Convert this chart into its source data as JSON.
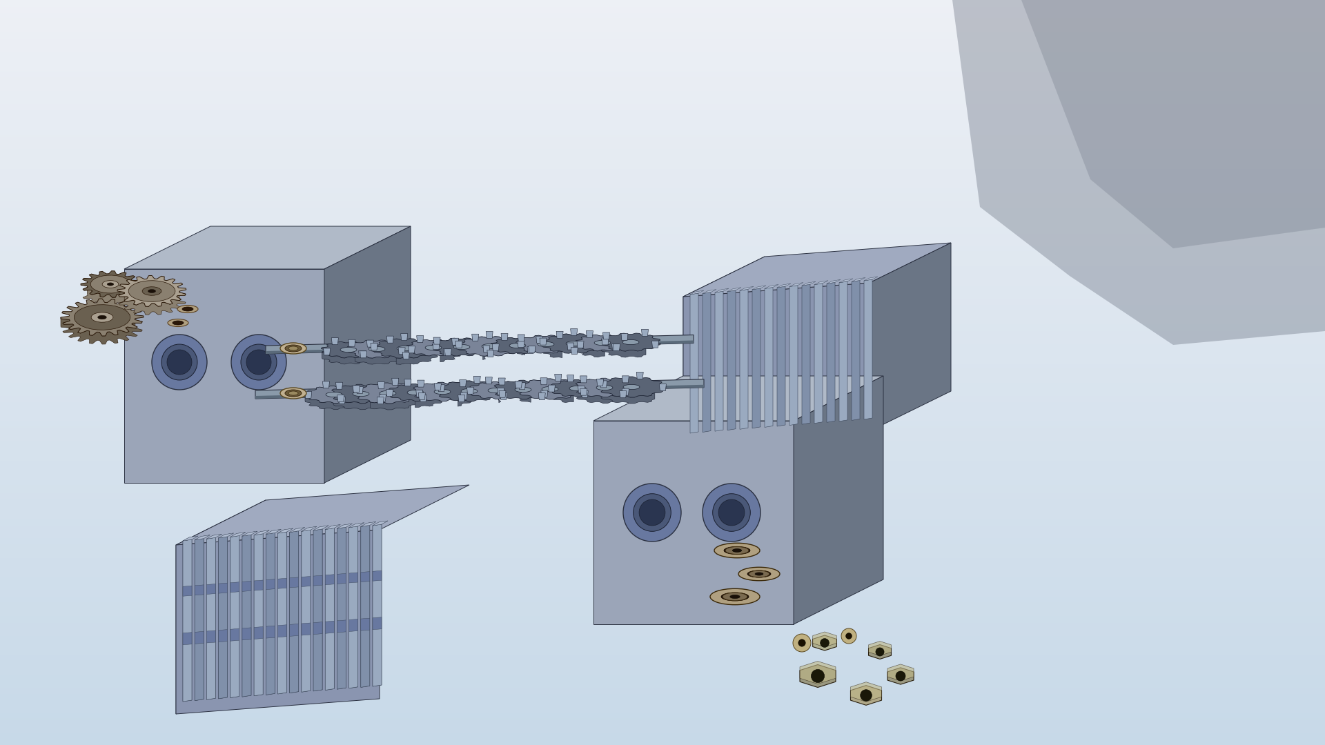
{
  "bg_color_top": "#c8d8e8",
  "bg_color_bottom": "#e8eef4",
  "plate_face": "#9ba5b8",
  "plate_top": "#b0bac8",
  "plate_side": "#6a7585",
  "blade_mid": "#7a8498",
  "blade_dark": "#5a6475",
  "blade_light": "#9aaabf",
  "shaft_color": "#8a9aaa",
  "shaft_dark": "#5a6a7a",
  "gear_color": "#8a8070",
  "gear_light": "#aaa090",
  "gear_dark": "#6a6050",
  "bearing_outer": "#b0a080",
  "bearing_inner": "#7a6a50",
  "nut_color": "#9a9880",
  "comb_face": "#8a95b0",
  "comb_top": "#a0aac0",
  "comb_blade_a": "#9aaac0",
  "comb_blade_b": "#8090aa",
  "comb_blade_top": "#b0bcd0",
  "shadow_color": "#606878"
}
